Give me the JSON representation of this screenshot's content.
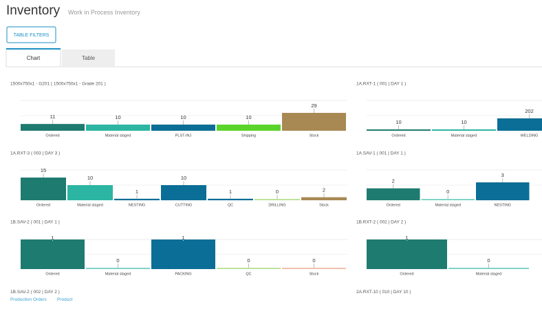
{
  "header": {
    "title": "Inventory",
    "subtitle": "Work in Process Inventory"
  },
  "filter_button": "TABLE FILTERS",
  "tabs": [
    "Chart",
    "Table"
  ],
  "chart_data": [
    {
      "type": "bar",
      "title": "1500x750x1 - G201 ( 1500x750x1 - Grade 201 )",
      "categories": [
        "Ordered",
        "Material staged",
        "PLST-INJ",
        "Shipping",
        "Stock"
      ],
      "values": [
        11,
        10,
        10,
        10,
        29
      ],
      "colors": [
        "#1e7b6f",
        "#2bb5a2",
        "#0b6e96",
        "#5ad42a",
        "#a88953"
      ]
    },
    {
      "type": "bar",
      "title": "1A.RXT-1 ( 001 | DAY 1 )",
      "categories": [
        "Ordered",
        "Material staged",
        "WELDING"
      ],
      "values": [
        10,
        10,
        202
      ],
      "colors": [
        "#1e7b6f",
        "#2bb5a2",
        "#0b6e96"
      ]
    },
    {
      "type": "bar",
      "title": "1A.RXT-3 ( 003 | DAY 3 )",
      "categories": [
        "Ordered",
        "Material staged",
        "NESTING",
        "CUTTING",
        "QC",
        "DRILLING",
        "Stock"
      ],
      "values": [
        15,
        10,
        1,
        10,
        1,
        0,
        2
      ],
      "colors": [
        "#1e7b6f",
        "#2bb5a2",
        "#0b6e96",
        "#0b6e96",
        "#0b6e96",
        "#8fcf5a",
        "#a88953"
      ]
    },
    {
      "type": "bar",
      "title": "1A.SAV-1 ( 001 | DAY 1 )",
      "categories": [
        "Ordered",
        "Material staged",
        "NESTING"
      ],
      "values": [
        2,
        0,
        3
      ],
      "colors": [
        "#1e7b6f",
        "#2bb5a2",
        "#0b6e96"
      ]
    },
    {
      "type": "bar",
      "title": "1B.SAV-2 ( 001 | DAY 1 )",
      "categories": [
        "Ordered",
        "Material staged",
        "PACKING",
        "QC",
        "Stock"
      ],
      "values": [
        1,
        0,
        1,
        0,
        0
      ],
      "colors": [
        "#1e7b6f",
        "#2bb5a2",
        "#0b6e96",
        "#8fcf5a",
        "#e8987a"
      ]
    },
    {
      "type": "bar",
      "title": "1B.RXT-2 ( 002 | DAY 2 )",
      "categories": [
        "Ordered",
        "Material staged"
      ],
      "values": [
        1,
        0
      ],
      "colors": [
        "#1e7b6f",
        "#2bb5a2"
      ]
    }
  ],
  "more_titles": [
    "1B.SAV-2 ( 002 | DAY 2 )",
    "2A.RXT-10 ( 010 | DAY 10 )"
  ],
  "footer_links": [
    "Production Orders",
    "Product"
  ]
}
